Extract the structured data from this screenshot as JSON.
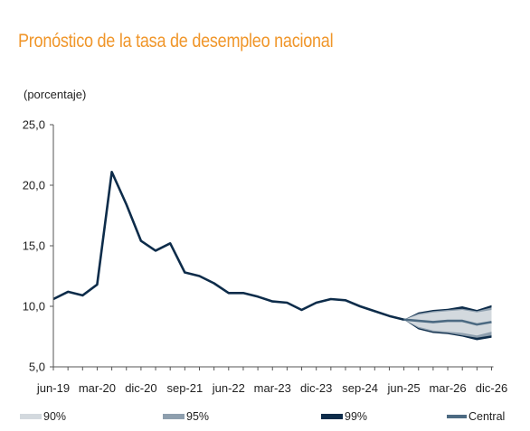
{
  "title": "Pronóstico de la tasa de desempleo nacional",
  "unit_label": "(porcentaje)",
  "colors": {
    "title": "#f0962a",
    "line": "#0d2c4a",
    "band90": "#d3d9de",
    "band95": "#8e9fae",
    "band99": "#0d2c4a",
    "central": "#4c6a82",
    "axis": "#555555"
  },
  "legend": {
    "band90": "90%",
    "band95": "95%",
    "band99": "99%",
    "central": "Central"
  },
  "chart_data": {
    "type": "line",
    "title": "Pronóstico de la tasa de desempleo nacional",
    "ylabel": "(porcentaje)",
    "ylim": [
      5.0,
      25.0
    ],
    "yticks": [
      "25,0",
      "20,0",
      "15,0",
      "10,0",
      "5,0"
    ],
    "ytick_values": [
      25,
      20,
      15,
      10,
      5
    ],
    "xticks": [
      "jun-19",
      "mar-20",
      "dic-20",
      "sep-21",
      "jun-22",
      "mar-23",
      "dic-23",
      "sep-24",
      "jun-25",
      "mar-26",
      "dic-26"
    ],
    "grid": false,
    "legend_position": "bottom",
    "historical": {
      "x": [
        "jun-19",
        "sep-19",
        "dic-19",
        "mar-20",
        "jun-20",
        "sep-20",
        "dic-20",
        "mar-21",
        "jun-21",
        "sep-21",
        "dic-21",
        "mar-22",
        "jun-22",
        "sep-22",
        "dic-22",
        "mar-23",
        "jun-23",
        "sep-23",
        "dic-23",
        "mar-24",
        "jun-24",
        "sep-24",
        "dic-24",
        "mar-25",
        "jun-25"
      ],
      "values": [
        10.6,
        11.2,
        10.9,
        11.8,
        21.1,
        18.4,
        15.4,
        14.6,
        15.2,
        12.8,
        12.5,
        11.9,
        11.1,
        11.1,
        10.8,
        10.4,
        10.3,
        9.7,
        10.3,
        10.6,
        10.5,
        10.0,
        9.6,
        9.2,
        8.9
      ]
    },
    "forecast": {
      "x": [
        "jun-25",
        "sep-25",
        "dic-25",
        "mar-26",
        "jun-26",
        "sep-26",
        "dic-26"
      ],
      "central": [
        8.9,
        8.8,
        8.7,
        8.8,
        8.8,
        8.5,
        8.7
      ],
      "band90": {
        "lower": [
          8.9,
          8.3,
          8.0,
          7.9,
          7.8,
          7.6,
          7.9
        ],
        "upper": [
          8.9,
          9.3,
          9.5,
          9.6,
          9.7,
          9.5,
          9.7
        ]
      },
      "band95": {
        "lower": [
          8.9,
          8.2,
          7.9,
          7.8,
          7.6,
          7.4,
          7.6
        ],
        "upper": [
          8.9,
          9.4,
          9.6,
          9.7,
          9.8,
          9.6,
          9.9
        ]
      },
      "band99": {
        "lower": [
          8.9,
          8.1,
          7.8,
          7.7,
          7.5,
          7.2,
          7.4
        ],
        "upper": [
          8.9,
          9.5,
          9.7,
          9.8,
          10.0,
          9.7,
          10.1
        ]
      }
    }
  }
}
